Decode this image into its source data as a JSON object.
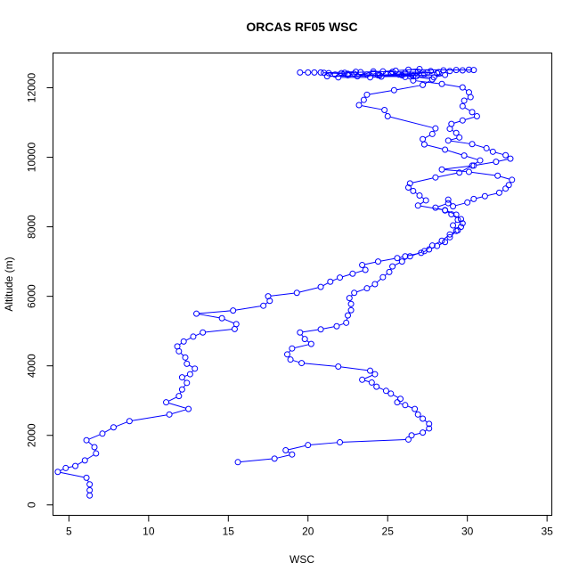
{
  "chart_data": {
    "type": "line",
    "title": "ORCAS RF05 WSC",
    "xlabel": "WSC",
    "ylabel": "Altitude (m)",
    "xlim": [
      4,
      35.3
    ],
    "ylim": [
      -300,
      13000
    ],
    "xticks": [
      5,
      10,
      15,
      20,
      25,
      30,
      35
    ],
    "yticks": [
      0,
      2000,
      4000,
      6000,
      8000,
      10000,
      12000
    ],
    "grid": false,
    "line_color": "#0000ff",
    "marker": "open-circle",
    "series": [
      {
        "points": [
          [
            6.3,
            270
          ],
          [
            6.3,
            420
          ],
          [
            6.3,
            590
          ],
          [
            6.1,
            780
          ],
          [
            4.3,
            950
          ],
          [
            4.8,
            1060
          ],
          [
            5.4,
            1120
          ],
          [
            6.0,
            1280
          ],
          [
            6.7,
            1480
          ],
          [
            6.6,
            1660
          ],
          [
            6.1,
            1860
          ],
          [
            7.1,
            2050
          ],
          [
            7.8,
            2230
          ],
          [
            8.8,
            2410
          ],
          [
            11.3,
            2600
          ],
          [
            12.5,
            2760
          ],
          [
            11.1,
            2950
          ],
          [
            11.9,
            3130
          ],
          [
            12.1,
            3320
          ],
          [
            12.4,
            3510
          ],
          [
            12.1,
            3670
          ],
          [
            12.6,
            3760
          ],
          [
            12.9,
            3920
          ],
          [
            12.4,
            4060
          ],
          [
            12.3,
            4240
          ],
          [
            11.9,
            4420
          ],
          [
            11.8,
            4560
          ],
          [
            12.2,
            4700
          ],
          [
            12.8,
            4840
          ],
          [
            13.4,
            4960
          ],
          [
            15.4,
            5060
          ],
          [
            15.5,
            5200
          ],
          [
            14.6,
            5370
          ],
          [
            13.0,
            5500
          ],
          [
            15.3,
            5590
          ],
          [
            17.2,
            5730
          ],
          [
            17.6,
            5870
          ],
          [
            17.5,
            6000
          ],
          [
            19.3,
            6100
          ],
          [
            20.8,
            6270
          ],
          [
            21.4,
            6420
          ],
          [
            22.0,
            6540
          ],
          [
            22.8,
            6650
          ],
          [
            23.6,
            6760
          ],
          [
            23.4,
            6900
          ],
          [
            24.4,
            7000
          ],
          [
            25.6,
            7100
          ],
          [
            26.1,
            7150
          ],
          [
            27.1,
            7250
          ],
          [
            27.6,
            7350
          ],
          [
            28.1,
            7450
          ],
          [
            28.6,
            7560
          ],
          [
            28.9,
            7700
          ],
          [
            29.3,
            7880
          ],
          [
            29.6,
            8000
          ],
          [
            29.7,
            8100
          ],
          [
            29.6,
            8220
          ],
          [
            29.0,
            8360
          ],
          [
            28.6,
            8470
          ],
          [
            28.0,
            8550
          ],
          [
            28.8,
            8680
          ],
          [
            28.8,
            8780
          ],
          [
            29.1,
            8590
          ],
          [
            30.0,
            8700
          ],
          [
            30.4,
            8800
          ],
          [
            31.1,
            8880
          ],
          [
            32.0,
            8980
          ],
          [
            32.4,
            9100
          ],
          [
            32.6,
            9200
          ],
          [
            32.8,
            9350
          ],
          [
            31.9,
            9470
          ],
          [
            30.1,
            9580
          ],
          [
            28.4,
            9650
          ],
          [
            30.4,
            9760
          ],
          [
            31.8,
            9870
          ],
          [
            32.7,
            9960
          ],
          [
            32.4,
            10060
          ],
          [
            31.6,
            10160
          ],
          [
            31.2,
            10260
          ],
          [
            30.3,
            10380
          ],
          [
            28.8,
            10480
          ],
          [
            29.5,
            10570
          ],
          [
            29.3,
            10700
          ],
          [
            28.9,
            10820
          ],
          [
            29.0,
            10960
          ],
          [
            29.7,
            11060
          ],
          [
            30.6,
            11180
          ],
          [
            30.3,
            11300
          ],
          [
            29.7,
            11470
          ],
          [
            29.8,
            11630
          ],
          [
            30.2,
            11730
          ],
          [
            30.1,
            11870
          ],
          [
            29.7,
            12010
          ],
          [
            28.4,
            12110
          ],
          [
            26.6,
            12210
          ],
          [
            26.1,
            12310
          ],
          [
            24.4,
            12360
          ],
          [
            22.5,
            12400
          ],
          [
            21.0,
            12430
          ],
          [
            23.0,
            12460
          ]
        ]
      },
      {
        "points": [
          [
            15.6,
            1230
          ],
          [
            17.9,
            1330
          ],
          [
            19.0,
            1450
          ],
          [
            18.6,
            1570
          ],
          [
            20.0,
            1720
          ],
          [
            22.0,
            1800
          ],
          [
            26.3,
            1880
          ],
          [
            26.5,
            2000
          ],
          [
            27.2,
            2080
          ],
          [
            27.6,
            2200
          ],
          [
            27.6,
            2330
          ],
          [
            27.2,
            2480
          ],
          [
            26.9,
            2600
          ],
          [
            26.7,
            2760
          ],
          [
            26.1,
            2870
          ],
          [
            25.6,
            2950
          ],
          [
            25.8,
            3050
          ],
          [
            25.2,
            3200
          ],
          [
            24.9,
            3280
          ],
          [
            24.3,
            3400
          ],
          [
            24.0,
            3520
          ],
          [
            23.4,
            3600
          ],
          [
            24.2,
            3760
          ],
          [
            23.9,
            3860
          ],
          [
            21.9,
            3980
          ],
          [
            19.6,
            4080
          ],
          [
            18.9,
            4180
          ],
          [
            18.7,
            4330
          ],
          [
            19.0,
            4500
          ],
          [
            20.2,
            4630
          ],
          [
            19.8,
            4770
          ],
          [
            19.5,
            4960
          ],
          [
            20.8,
            5050
          ],
          [
            21.8,
            5140
          ],
          [
            22.4,
            5240
          ],
          [
            22.5,
            5450
          ],
          [
            22.7,
            5600
          ],
          [
            22.7,
            5780
          ],
          [
            22.6,
            5950
          ],
          [
            22.9,
            6100
          ],
          [
            23.7,
            6230
          ],
          [
            24.2,
            6350
          ],
          [
            24.7,
            6550
          ],
          [
            25.1,
            6700
          ],
          [
            25.3,
            6860
          ],
          [
            25.9,
            7000
          ],
          [
            26.4,
            7150
          ],
          [
            27.3,
            7300
          ],
          [
            27.8,
            7460
          ],
          [
            28.4,
            7600
          ],
          [
            28.9,
            7780
          ],
          [
            29.4,
            7900
          ],
          [
            29.1,
            8040
          ],
          [
            29.4,
            8200
          ],
          [
            29.3,
            8350
          ],
          [
            28.6,
            8480
          ],
          [
            26.9,
            8610
          ],
          [
            27.4,
            8760
          ],
          [
            27.0,
            8900
          ],
          [
            26.6,
            9030
          ],
          [
            26.3,
            9130
          ],
          [
            26.4,
            9250
          ],
          [
            28.0,
            9420
          ],
          [
            29.5,
            9560
          ],
          [
            30.3,
            9760
          ],
          [
            30.8,
            9910
          ],
          [
            29.8,
            10050
          ],
          [
            28.6,
            10220
          ],
          [
            27.3,
            10370
          ],
          [
            27.2,
            10520
          ],
          [
            27.8,
            10670
          ],
          [
            28.0,
            10830
          ],
          [
            25.0,
            11180
          ],
          [
            24.8,
            11360
          ],
          [
            23.2,
            11500
          ],
          [
            23.5,
            11650
          ],
          [
            23.7,
            11800
          ],
          [
            25.4,
            11930
          ],
          [
            27.2,
            12080
          ],
          [
            27.8,
            12240
          ],
          [
            26.6,
            12330
          ],
          [
            25.2,
            12420
          ]
        ]
      },
      {
        "points": [
          [
            19.5,
            12440
          ],
          [
            20.0,
            12440
          ],
          [
            20.4,
            12440
          ],
          [
            20.8,
            12440
          ],
          [
            21.3,
            12420
          ],
          [
            21.7,
            12380
          ],
          [
            22.1,
            12420
          ],
          [
            22.5,
            12360
          ],
          [
            22.9,
            12400
          ],
          [
            23.3,
            12450
          ],
          [
            23.7,
            12380
          ],
          [
            24.1,
            12420
          ],
          [
            24.5,
            12360
          ],
          [
            24.9,
            12400
          ],
          [
            25.3,
            12460
          ],
          [
            25.7,
            12380
          ],
          [
            26.1,
            12430
          ],
          [
            26.5,
            12370
          ],
          [
            26.9,
            12460
          ],
          [
            27.3,
            12400
          ],
          [
            27.7,
            12480
          ],
          [
            28.1,
            12420
          ],
          [
            28.5,
            12500
          ],
          [
            28.9,
            12480
          ],
          [
            29.3,
            12510
          ],
          [
            29.7,
            12500
          ],
          [
            30.1,
            12520
          ],
          [
            30.4,
            12510
          ],
          [
            26.3,
            12520
          ],
          [
            27.0,
            12540
          ],
          [
            25.5,
            12490
          ],
          [
            24.7,
            12470
          ],
          [
            22.3,
            12430
          ],
          [
            21.9,
            12300
          ],
          [
            23.9,
            12300
          ],
          [
            24.6,
            12320
          ],
          [
            26.8,
            12330
          ],
          [
            27.9,
            12300
          ],
          [
            28.6,
            12370
          ],
          [
            21.2,
            12330
          ],
          [
            25.9,
            12360
          ],
          [
            27.5,
            12440
          ],
          [
            24.1,
            12470
          ],
          [
            23.1,
            12330
          ],
          [
            28.2,
            12450
          ]
        ]
      }
    ]
  }
}
